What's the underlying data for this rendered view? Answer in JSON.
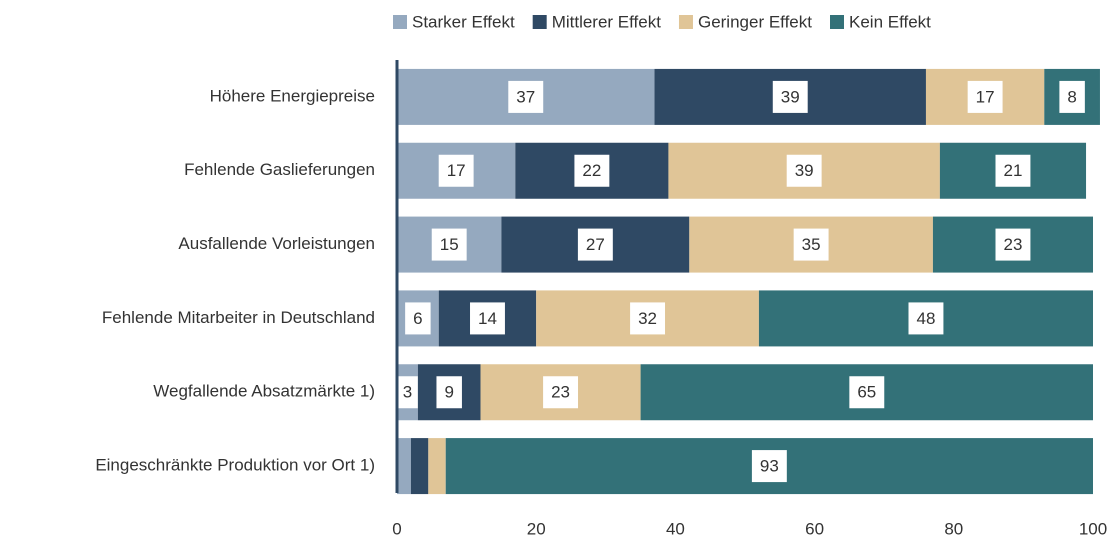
{
  "chart_data": {
    "type": "stacked-bar-horizontal",
    "categories": [
      "Höhere Energiepreise",
      "Fehlende Gaslieferungen",
      "Ausfallende Vorleistungen",
      "Fehlende Mitarbeiter in Deutschland",
      "Wegfallende Absatzmärkte 1)",
      "Eingeschränkte Produktion vor Ort 1)"
    ],
    "series": [
      {
        "name": "Starker Effekt",
        "color": "#95a9bf",
        "values": [
          37,
          17,
          15,
          6,
          3,
          2
        ]
      },
      {
        "name": "Mittlerer Effekt",
        "color": "#2f4964",
        "values": [
          39,
          22,
          27,
          14,
          9,
          2.5
        ]
      },
      {
        "name": "Geringer Effekt",
        "color": "#e0c597",
        "values": [
          17,
          39,
          35,
          32,
          23,
          2.5
        ]
      },
      {
        "name": "Kein Effekt",
        "color": "#337178",
        "values": [
          8,
          21,
          23,
          48,
          65,
          93
        ]
      }
    ],
    "xlim": [
      0,
      100
    ],
    "xticks": [
      0,
      20,
      40,
      60,
      80,
      100
    ],
    "legend": "top"
  }
}
